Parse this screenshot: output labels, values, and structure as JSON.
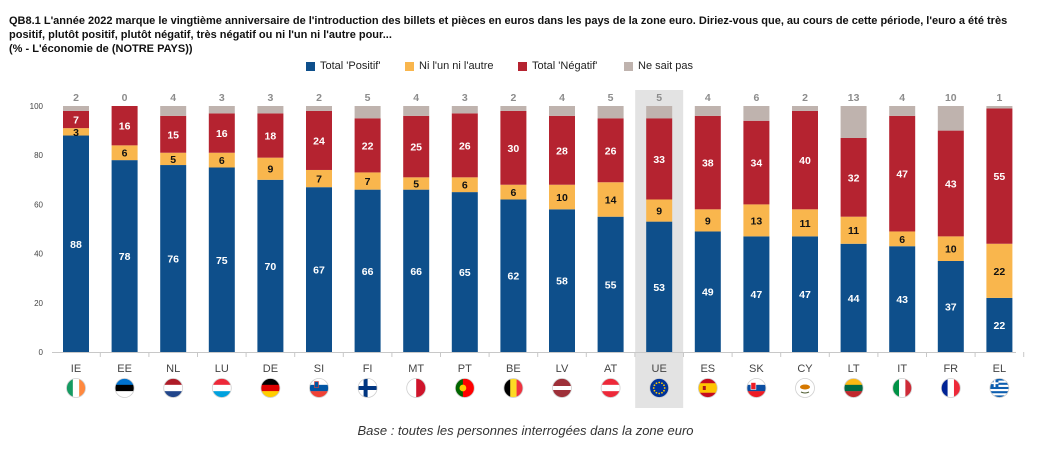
{
  "title": {
    "line1": "QB8.1 L'année 2022 marque le vingtième anniversaire de l'introduction des billets et pièces en euros dans les pays de la zone euro. Diriez-vous que, au cours de cette période, l'euro a été très",
    "line2": "positif, plutôt positif, plutôt négatif, très négatif ou ni l'un ni l'autre pour...",
    "line3": "(%  - L'économie de (NOTRE PAYS))"
  },
  "footnote": "Base : toutes les personnes interrogées dans la zone euro",
  "colors": {
    "positif": "#0e4f8b",
    "ni": "#f9b64d",
    "negatif": "#b52330",
    "nsp": "#bfb3ae",
    "highlight": "#e3e3e3",
    "grid": "#c8c8c8"
  },
  "chart_data": {
    "type": "bar",
    "stacked": true,
    "ylim": [
      0,
      100
    ],
    "yticks": [
      0,
      20,
      40,
      60,
      80,
      100
    ],
    "categories": [
      "IE",
      "EE",
      "NL",
      "LU",
      "DE",
      "SI",
      "FI",
      "MT",
      "PT",
      "BE",
      "LV",
      "AT",
      "UE",
      "ES",
      "SK",
      "CY",
      "LT",
      "IT",
      "FR",
      "EL"
    ],
    "highlight": "UE",
    "legend_position": "top-center",
    "series": [
      {
        "key": "positif",
        "name": "Total 'Positif'",
        "values": [
          88,
          78,
          76,
          75,
          70,
          67,
          66,
          66,
          65,
          62,
          58,
          55,
          53,
          49,
          47,
          47,
          44,
          43,
          37,
          22
        ]
      },
      {
        "key": "ni",
        "name": "Ni l'un ni l'autre",
        "values": [
          3,
          6,
          5,
          6,
          9,
          7,
          7,
          5,
          6,
          6,
          10,
          14,
          9,
          9,
          13,
          11,
          11,
          6,
          10,
          22
        ]
      },
      {
        "key": "negatif",
        "name": "Total 'Négatif'",
        "values": [
          7,
          16,
          15,
          16,
          18,
          24,
          22,
          25,
          26,
          30,
          28,
          26,
          33,
          38,
          34,
          40,
          32,
          47,
          43,
          55
        ]
      },
      {
        "key": "nsp",
        "name": "Ne sait pas",
        "values": [
          2,
          0,
          4,
          3,
          3,
          2,
          5,
          4,
          3,
          2,
          4,
          5,
          5,
          4,
          6,
          2,
          13,
          4,
          10,
          1
        ]
      }
    ],
    "flags": [
      "ie-flag-icon",
      "ee-flag-icon",
      "nl-flag-icon",
      "lu-flag-icon",
      "de-flag-icon",
      "si-flag-icon",
      "fi-flag-icon",
      "mt-flag-icon",
      "pt-flag-icon",
      "be-flag-icon",
      "lv-flag-icon",
      "at-flag-icon",
      "eu-flag-icon",
      "es-flag-icon",
      "sk-flag-icon",
      "cy-flag-icon",
      "lt-flag-icon",
      "it-flag-icon",
      "fr-flag-icon",
      "gr-flag-icon"
    ]
  }
}
